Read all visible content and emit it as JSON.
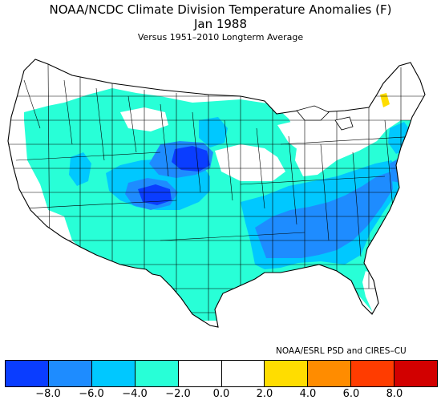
{
  "title": "NOAA/NCDC Climate Division Temperature Anomalies (F)",
  "period": "Jan 1988",
  "subtitle": "Versus 1951–2010 Longterm Average",
  "credit": "NOAA/ESRL PSD and CIRES–CU",
  "legend": {
    "colors": [
      "#0a3dff",
      "#1e8cff",
      "#00c8ff",
      "#28ffd7",
      "#ffffff",
      "#ffffff",
      "#ffdd00",
      "#ff8c00",
      "#ff3c00",
      "#d20000"
    ],
    "ticks": [
      "−8.0",
      "−6.0",
      "−4.0",
      "−2.0",
      "0.0",
      "2.0",
      "4.0",
      "6.0",
      "8.0"
    ]
  },
  "palette": {
    "anomaly_-8_to_-6": "#0a3dff",
    "anomaly_-6_to_-4": "#1e8cff",
    "anomaly_-4_to_-2": "#00c8ff",
    "anomaly_-2_to_0": "#28ffd7",
    "anomaly_0_to_2": "#ffffff",
    "anomaly_2_to_4": "#ffdd00"
  }
}
